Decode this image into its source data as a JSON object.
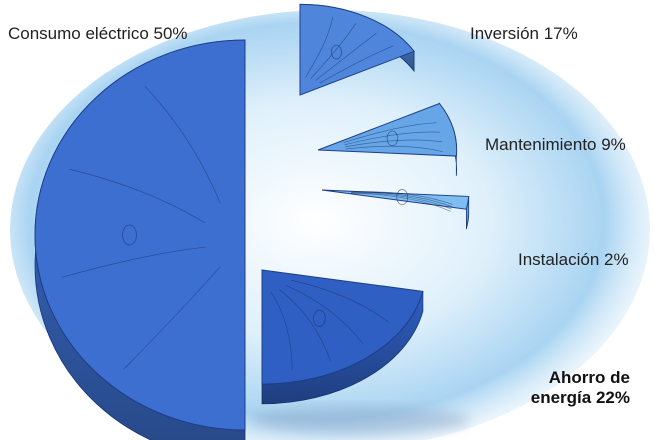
{
  "chart_data": {
    "type": "pie",
    "title": "",
    "slices": [
      {
        "label": "Consumo eléctrico 50%",
        "value": 50,
        "color": "#3c6fd0"
      },
      {
        "label": "Inversión 17%",
        "value": 17,
        "color": "#4f86dc"
      },
      {
        "label": "Mantenimiento 9%",
        "value": 9,
        "color": "#66a6e6"
      },
      {
        "label": "Instalación 2%",
        "value": 2,
        "color": "#7ebdef"
      },
      {
        "label": "Ahorro de\nenergía 22%",
        "value": 22,
        "color": "#2f5fc2"
      }
    ],
    "legend": "none",
    "style": "exploded-3d"
  }
}
